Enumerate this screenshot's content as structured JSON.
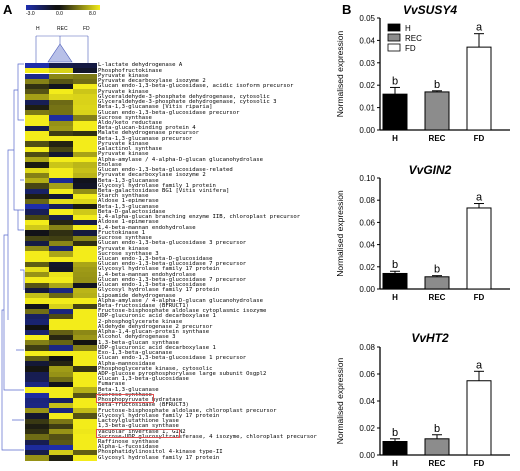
{
  "panels": {
    "a": "A",
    "b": "B"
  },
  "heatmap": {
    "scale": {
      "min": "-3.0",
      "mid": "0.0",
      "max": "8.0"
    },
    "columns": [
      "H",
      "REC",
      "FD"
    ],
    "genes": [
      "L-lactate dehydrogenase A",
      "Phosphofructokinase",
      "Pyruvate kinase",
      "Pyruvate decarboxylase isozyme 2",
      "Glucan endo-1,3-beta-glucosidase, acidic isoform precursor",
      "Pyruvate kinase",
      "Glyceraldehyde-3-phosphate dehydrogenase, cytosolic",
      "Glyceraldehyde-3-phosphate dehydrogenase, cytosolic 3",
      "Beta-1,3-glucanase [Vitis riparia]",
      "Glucan endo-1,3-beta-glucosidase precursor",
      "Sucrose synthase",
      "Aldo/keto reductase",
      "Beta-glucan-binding protein 4",
      "Malate dehydrogenase precursor",
      "Beta-1,3-glucanase precursor",
      "Pyruvate kinase",
      "Galactinol synthase",
      "Pyruvate kinase",
      "Alpha-amylase / 4-alpha-D-glucan glucanohydrolase",
      "Enolase",
      "Glucan endo-1,3-beta-glucosidase-related",
      "Pyruvate decarboxylase isozyme 2",
      "Beta-1,3-glucanase",
      "Glycosyl hydrolase family 1 protein",
      "Beta-galactosidase BG1 [Vitis vinifera]",
      "Starch synthase",
      "Aldose 1-epimerase",
      "Beta-1,3-glucanase",
      "Beta-D-galactosidase",
      "1,4-alpha-glucan branching enzyme IIB, chloroplast precursor",
      "Aldose 1-epimerase",
      "1,4-beta-mannan endohydrolase",
      "Fructokinase 1",
      "Sucrose synthase",
      "Glucan endo-1,3-beta-glucosidase 3 precursor",
      "Pyruvate kinase",
      "Sucrose synthase 3",
      "Glucan endo-1,3-beta-D-glucosidase",
      "Glucan endo-1,3-beta-glucosidase 7 precursor",
      "Glycosyl hydrolase family 17 protein",
      "1,4-beta-mannan endohydrolase",
      "Glucan endo-1,3-beta-glucosidase 7 precursor",
      "Glucan endo-1,3-beta-glucosidase",
      "Glycosyl hydrolase family 17 protein",
      "Lipoamide dehydrogenase",
      "Alpha-amylase / 4-alpha-D-glucan glucanohydrolase",
      "Beta-fructosidase (BFRUCT1)",
      "Fructose-bisphosphate aldolase cytoplasmic isozyme",
      "UDP-glucuronic acid decarboxylase 1",
      "2-phosphoglycerate kinase",
      "Aldehyde dehydrogenase 2 precursor",
      "Alpha-1,4-glucan-protein synthase",
      "Alcohol dehydrogenase 3",
      "1,3-beta-glucan synthase",
      "UDP-glucuronic acid decarboxylase 1",
      "Exo-1,3-beta-glucanase",
      "Glucan endo-1,3-beta-glucosidase 1 precursor",
      "Alpha-mannosidase",
      "Phosphoglycerate kinase, cytosolic",
      "ADP-glucose pyrophosphorylase large subunit Osgpl2",
      "Glucan 1,3-beta-glucosidase",
      "Fumarase",
      "Beta-1,3-glucanase",
      "Sucrose synthase",
      "Phosphopyruvate hydratase",
      "Beta-fructosidase (BFRUCT3)",
      "Fructose-bisphosphate aldolase, chloroplast precursor",
      "Glycosyl hydrolase family 17 protein",
      "Lactoylglutathione lyase",
      "1,3-beta-glucan synthase",
      "Vacuolar invertase 1, GIN2",
      "Sucrose-UDP glucosyltransferase, 4 isozyme, chloroplast precursor",
      "Raffinose synthase",
      "Alpha-L-fucosidase",
      "Phosphatidylinositol 4-kinase type-II",
      "Glycosyl hydrolase family 17 protein"
    ],
    "highlighted": [
      "Sucrose synthase",
      "Vacuolar invertase 1, GIN2"
    ],
    "colors": {
      "low": "#1f2fb0",
      "zero": "#111111",
      "high": "#f3ec1a"
    }
  },
  "chart_data": [
    {
      "type": "bar",
      "title": "VvSUSY4",
      "ylabel": "Normalised expression",
      "categories": [
        "H",
        "REC",
        "FD"
      ],
      "values": [
        0.016,
        0.017,
        0.037
      ],
      "errors": [
        0.003,
        0.0005,
        0.006
      ],
      "significance": [
        "b",
        "b",
        "a"
      ],
      "ylim": [
        0,
        0.05
      ],
      "yticks": [
        "0.00",
        "0.01",
        "0.02",
        "0.03",
        "0.04",
        "0.05"
      ],
      "legend": [
        "H",
        "REC",
        "FD"
      ],
      "fills": [
        "#000000",
        "#8c8c8c",
        "#ffffff"
      ]
    },
    {
      "type": "bar",
      "title": "VvGIN2",
      "ylabel": "Normalised expression",
      "categories": [
        "H",
        "REC",
        "FD"
      ],
      "values": [
        0.014,
        0.011,
        0.073
      ],
      "errors": [
        0.002,
        0.001,
        0.004
      ],
      "significance": [
        "b",
        "b",
        "a"
      ],
      "ylim": [
        0,
        0.1
      ],
      "yticks": [
        "0.00",
        "0.02",
        "0.04",
        "0.06",
        "0.08",
        "0.10"
      ],
      "fills": [
        "#000000",
        "#8c8c8c",
        "#ffffff"
      ]
    },
    {
      "type": "bar",
      "title": "VvHT2",
      "ylabel": "Normalised expression",
      "categories": [
        "H",
        "REC",
        "FD"
      ],
      "values": [
        0.01,
        0.012,
        0.055
      ],
      "errors": [
        0.002,
        0.003,
        0.007
      ],
      "significance": [
        "b",
        "b",
        "a"
      ],
      "ylim": [
        0,
        0.08
      ],
      "yticks": [
        "0.00",
        "0.02",
        "0.04",
        "0.06",
        "0.08"
      ],
      "fills": [
        "#000000",
        "#8c8c8c",
        "#ffffff"
      ]
    }
  ]
}
